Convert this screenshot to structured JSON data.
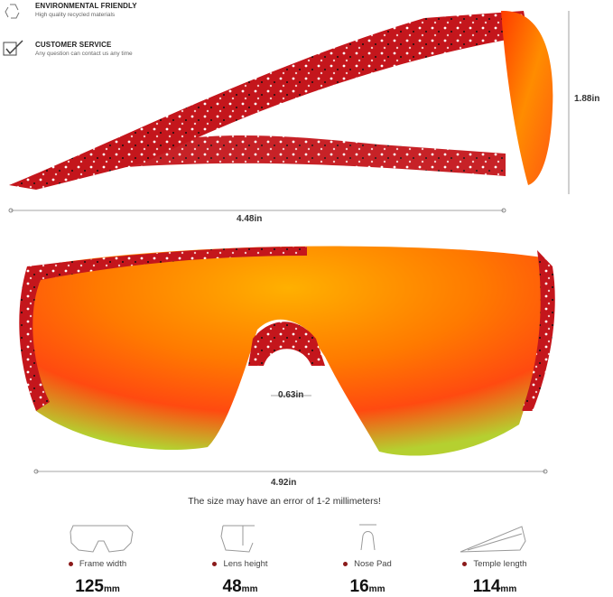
{
  "features": [
    {
      "icon": "recycle-icon",
      "title": "ENVIRONMENTAL FRIENDLY",
      "subtitle": "High quality recycled materials"
    },
    {
      "icon": "checkbox-icon",
      "title": "CUSTOMER SERVICE",
      "subtitle": "Any question can contact us any time"
    }
  ],
  "dimensions": {
    "height": "1.88in",
    "side_length": "4.48in",
    "nose_bridge": "0.63in",
    "front_width": "4.92in"
  },
  "note": "The size may have an error of 1-2 millimeters!",
  "specs": [
    {
      "icon": "frame-width-icon",
      "label": "Frame width",
      "value": "125",
      "unit": "mm"
    },
    {
      "icon": "lens-height-icon",
      "label": "Lens height",
      "value": "48",
      "unit": "mm"
    },
    {
      "icon": "nose-pad-icon",
      "label": "Nose Pad",
      "value": "16",
      "unit": "mm"
    },
    {
      "icon": "temple-length-icon",
      "label": "Temple length",
      "value": "114",
      "unit": "mm"
    }
  ],
  "colors": {
    "frame": "#c4161c",
    "lens_center": "#ff8a00",
    "lens_edge": "#9acd32",
    "accent_dot": "#8b1a1a"
  }
}
